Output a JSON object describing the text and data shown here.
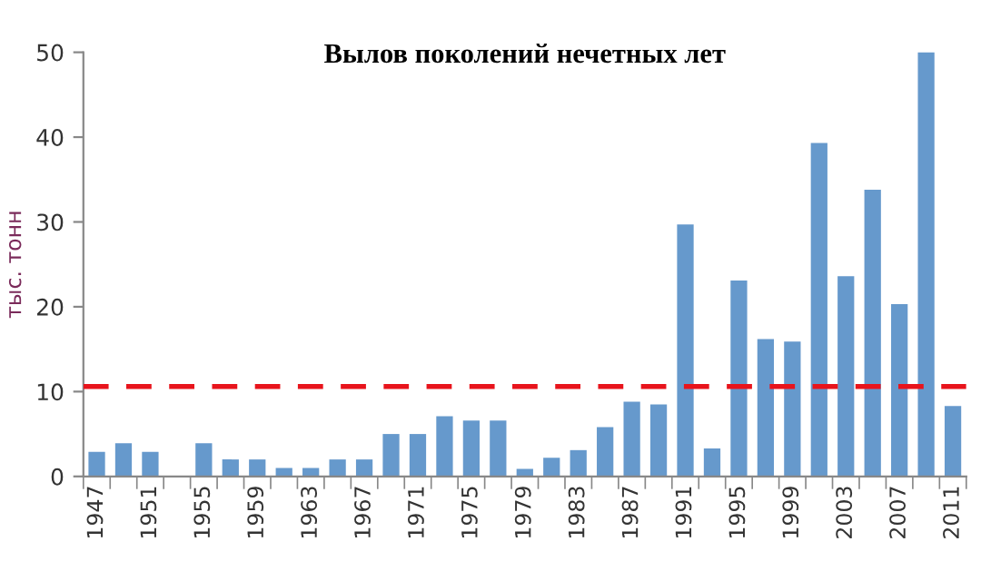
{
  "chart_data": {
    "type": "bar",
    "title": "Вылов поколений нечетных лет",
    "ylabel": "тыс. тонн",
    "categories": [
      "1947",
      null,
      "1951",
      null,
      "1955",
      null,
      "1959",
      null,
      "1963",
      null,
      "1967",
      null,
      "1971",
      null,
      "1975",
      null,
      "1979",
      null,
      "1983",
      null,
      "1987",
      null,
      "1991",
      null,
      "1995",
      null,
      "1999",
      null,
      "2003",
      null,
      "2007",
      null,
      "2011"
    ],
    "values": [
      2.9,
      3.9,
      2.9,
      null,
      3.9,
      2,
      2,
      1,
      1,
      2,
      2,
      5,
      5,
      7.1,
      6.6,
      6.6,
      0.9,
      2.2,
      3.1,
      5.8,
      8.8,
      8.5,
      29.7,
      3.3,
      23.1,
      16.2,
      15.9,
      39.3,
      23.6,
      33.8,
      20.3,
      50,
      8.3
    ],
    "color": "#6699cc",
    "ylim": [
      0,
      50
    ],
    "yticks": [
      0,
      10,
      20,
      30,
      40,
      50
    ],
    "grid": false,
    "ref_lines": [
      {
        "axis": "y",
        "value": 10.6,
        "label": null,
        "color": "#e8141c",
        "line_style": "dashed"
      }
    ]
  }
}
